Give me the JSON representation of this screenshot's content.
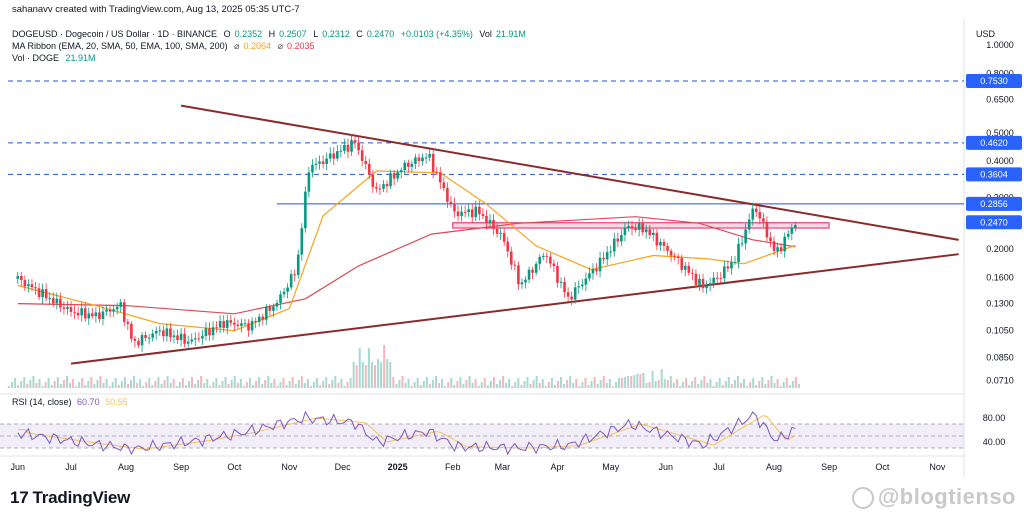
{
  "header": {
    "credit": "sahanavv created with TradingView.com, Aug 13, 2025 05:35 UTC-7",
    "symbol": "DOGEUSD · Dogecoin / US Dollar · 1D · BINANCE",
    "ohlc": {
      "o_label": "O",
      "o": "0.2352",
      "h_label": "H",
      "h": "0.2507",
      "l_label": "L",
      "l": "0.2312",
      "c_label": "C",
      "c": "0.2470",
      "chg": "+0.0103 (+4.35%)",
      "vol_label": "Vol",
      "vol": "21.91M"
    },
    "ma_ribbon": {
      "label": "MA Ribbon (EMA, 20, SMA, 50, EMA, 100, SMA, 200)",
      "sep1": "⌀",
      "v1": "0.2064",
      "sep2": "⌀",
      "v2": "0.2035"
    },
    "vol_line": {
      "label": "Vol · DOGE",
      "value": "21.91M"
    }
  },
  "rsi_header": {
    "label": "RSI (14, close)",
    "v1": "60.70",
    "v2": "50.55"
  },
  "footer": {
    "logo_text": "TradingView",
    "logo_mark": "17",
    "watermark": "@blogtienso"
  },
  "colors": {
    "up": "#089981",
    "down": "#f23645",
    "ma_orange": "#f7a21b",
    "ma_red": "#d94b55",
    "trendline": "#8b2a2a",
    "dashed": "#1e53e5",
    "rsi": "#7e57c2",
    "rsi_ma": "#f7c15e",
    "price_label": "#2962ff"
  },
  "chart_data": {
    "type": "line",
    "scale": "log",
    "currency_label": "USD",
    "y_ticks": [
      "1.0000",
      "0.8000",
      "0.6500",
      "0.5000",
      "0.4000",
      "0.3000",
      "0.2000",
      "0.1600",
      "0.1300",
      "0.1050",
      "0.0850",
      "0.0710"
    ],
    "x_ticks": [
      "Jun",
      "Jul",
      "Aug",
      "Sep",
      "Oct",
      "Nov",
      "Dec",
      "2025",
      "Feb",
      "Mar",
      "Apr",
      "May",
      "Jun",
      "Jul",
      "Aug",
      "Sep",
      "Oct",
      "Nov"
    ],
    "price_levels": [
      {
        "value": "0.7530",
        "style": "dashed"
      },
      {
        "value": "0.4620",
        "style": "dashed"
      },
      {
        "value": "0.3604",
        "style": "dashed"
      },
      {
        "value": "0.2856",
        "style": "solid"
      },
      {
        "value": "0.2470",
        "style": "current"
      }
    ],
    "rsi_ticks": [
      "80.00",
      "40.00"
    ],
    "price_series": {
      "name": "DOGEUSD",
      "points": [
        [
          "2024-06-01",
          0.158
        ],
        [
          "2024-06-15",
          0.14
        ],
        [
          "2024-07-01",
          0.122
        ],
        [
          "2024-07-15",
          0.118
        ],
        [
          "2024-07-29",
          0.128
        ],
        [
          "2024-08-05",
          0.095
        ],
        [
          "2024-08-20",
          0.105
        ],
        [
          "2024-09-06",
          0.096
        ],
        [
          "2024-09-25",
          0.112
        ],
        [
          "2024-10-10",
          0.109
        ],
        [
          "2024-10-25",
          0.131
        ],
        [
          "2024-11-05",
          0.17
        ],
        [
          "2024-11-12",
          0.38
        ],
        [
          "2024-11-20",
          0.4
        ],
        [
          "2024-12-05",
          0.455
        ],
        [
          "2024-12-08",
          0.465
        ],
        [
          "2024-12-20",
          0.315
        ],
        [
          "2025-01-05",
          0.385
        ],
        [
          "2025-01-18",
          0.42
        ],
        [
          "2025-02-02",
          0.265
        ],
        [
          "2025-02-15",
          0.27
        ],
        [
          "2025-03-01",
          0.22
        ],
        [
          "2025-03-11",
          0.15
        ],
        [
          "2025-03-25",
          0.195
        ],
        [
          "2025-04-07",
          0.135
        ],
        [
          "2025-04-25",
          0.18
        ],
        [
          "2025-05-10",
          0.238
        ],
        [
          "2025-05-20",
          0.235
        ],
        [
          "2025-06-05",
          0.19
        ],
        [
          "2025-06-22",
          0.148
        ],
        [
          "2025-07-01",
          0.161
        ],
        [
          "2025-07-10",
          0.185
        ],
        [
          "2025-07-21",
          0.282
        ],
        [
          "2025-08-02",
          0.192
        ],
        [
          "2025-08-13",
          0.247
        ]
      ]
    },
    "ma_fast": {
      "name": "MA Ribbon",
      "points": [
        [
          "2024-06-01",
          0.15
        ],
        [
          "2024-07-15",
          0.128
        ],
        [
          "2024-08-20",
          0.111
        ],
        [
          "2024-10-01",
          0.105
        ],
        [
          "2024-11-01",
          0.125
        ],
        [
          "2024-11-20",
          0.26
        ],
        [
          "2024-12-20",
          0.37
        ],
        [
          "2025-01-25",
          0.365
        ],
        [
          "2025-02-20",
          0.285
        ],
        [
          "2025-03-20",
          0.205
        ],
        [
          "2025-04-20",
          0.17
        ],
        [
          "2025-05-25",
          0.19
        ],
        [
          "2025-06-25",
          0.185
        ],
        [
          "2025-07-15",
          0.178
        ],
        [
          "2025-08-13",
          0.206
        ]
      ]
    },
    "ma_slow": {
      "name": "MA Ribbon",
      "points": [
        [
          "2024-06-01",
          0.13
        ],
        [
          "2024-08-01",
          0.128
        ],
        [
          "2024-10-01",
          0.12
        ],
        [
          "2024-11-10",
          0.135
        ],
        [
          "2024-12-10",
          0.175
        ],
        [
          "2025-01-20",
          0.225
        ],
        [
          "2025-03-10",
          0.245
        ],
        [
          "2025-05-15",
          0.258
        ],
        [
          "2025-06-20",
          0.245
        ],
        [
          "2025-07-20",
          0.215
        ],
        [
          "2025-08-13",
          0.2035
        ]
      ]
    },
    "trendlines": [
      {
        "from": [
          "2024-09-01",
          0.62
        ],
        "to": [
          "2025-11-13",
          0.215
        ]
      },
      {
        "from": [
          "2024-07-01",
          0.081
        ],
        "to": [
          "2025-11-13",
          0.192
        ]
      }
    ],
    "resistance_zone": {
      "from": "2025-02-01",
      "to": "2025-09-01",
      "low": 0.236,
      "high": 0.246
    },
    "rsi_series": {
      "name": "RSI (14, close)",
      "points": [
        [
          "2024-06-01",
          55
        ],
        [
          "2024-07-05",
          40
        ],
        [
          "2024-08-05",
          28
        ],
        [
          "2024-09-10",
          42
        ],
        [
          "2024-10-05",
          55
        ],
        [
          "2024-11-10",
          80
        ],
        [
          "2024-12-08",
          72
        ],
        [
          "2024-12-20",
          40
        ],
        [
          "2025-01-18",
          58
        ],
        [
          "2025-02-03",
          32
        ],
        [
          "2025-03-11",
          30
        ],
        [
          "2025-04-07",
          34
        ],
        [
          "2025-05-12",
          70
        ],
        [
          "2025-06-22",
          35
        ],
        [
          "2025-07-21",
          86
        ],
        [
          "2025-08-02",
          42
        ],
        [
          "2025-08-13",
          60.7
        ]
      ]
    }
  }
}
